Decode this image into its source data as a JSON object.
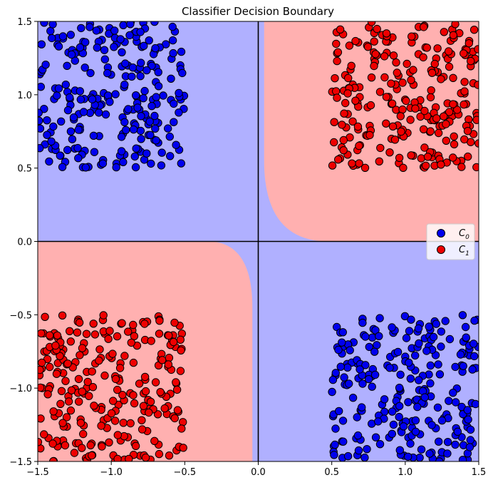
{
  "chart_data": {
    "type": "scatter",
    "title": "Classifier Decision Boundary",
    "xlabel": "",
    "ylabel": "",
    "xlim": [
      -1.5,
      1.5
    ],
    "ylim": [
      -1.5,
      1.5
    ],
    "x_ticks": [
      "-1.5",
      "-1.0",
      "-0.5",
      "0.0",
      "0.5",
      "1.0",
      "1.5"
    ],
    "y_ticks": [
      "-1.5",
      "-1.0",
      "-0.5",
      "0.0",
      "0.5",
      "1.0",
      "1.5"
    ],
    "grid": false,
    "legend_position": "right-center",
    "reference_lines": {
      "x": 0.0,
      "y": 0.0
    },
    "colors": {
      "class0_point": "#0000ee",
      "class1_point": "#ee0000",
      "class0_region": "#b0b0ff",
      "class1_region": "#ffb0b0"
    },
    "decision_regions": [
      {
        "class": "C_1",
        "description_quadrant": "x>0, y>0"
      },
      {
        "class": "C_1",
        "description_quadrant": "x<0, y<0"
      },
      {
        "class": "C_0",
        "description_quadrant": "x<0, y>0"
      },
      {
        "class": "C_0",
        "description_quadrant": "x>0, y<0"
      }
    ],
    "series": [
      {
        "name": "C_0",
        "legend_base": "C",
        "legend_sub": "0",
        "clusters": [
          {
            "x_range": [
              -1.5,
              -0.5
            ],
            "y_range": [
              0.5,
              1.5
            ],
            "count": 250
          },
          {
            "x_range": [
              0.5,
              1.5
            ],
            "y_range": [
              -1.5,
              -0.5
            ],
            "count": 250
          }
        ]
      },
      {
        "name": "C_1",
        "legend_base": "C",
        "legend_sub": "1",
        "clusters": [
          {
            "x_range": [
              0.5,
              1.5
            ],
            "y_range": [
              0.5,
              1.5
            ],
            "count": 250
          },
          {
            "x_range": [
              -1.5,
              -0.5
            ],
            "y_range": [
              -1.5,
              -0.5
            ],
            "count": 250
          }
        ]
      }
    ]
  }
}
